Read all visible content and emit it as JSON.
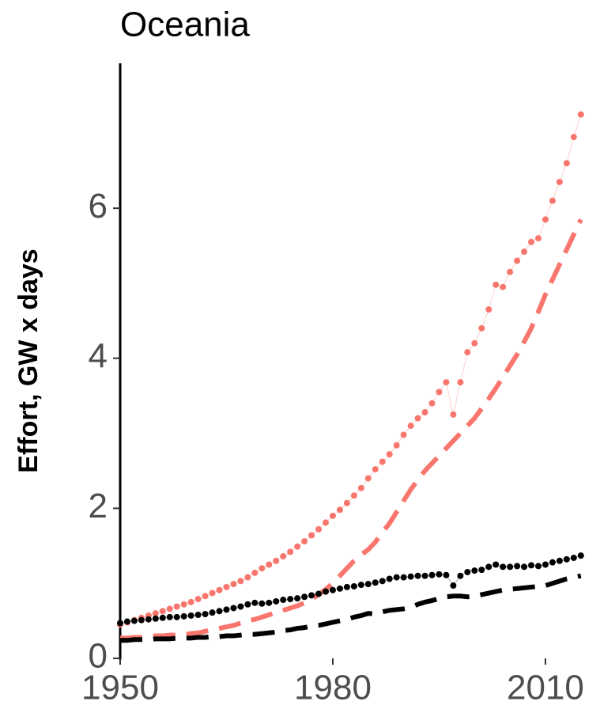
{
  "chart_data": {
    "type": "line",
    "title": "Oceania",
    "y_label": "Effort, GW x days",
    "x": [
      1950,
      1951,
      1952,
      1953,
      1954,
      1955,
      1956,
      1957,
      1958,
      1959,
      1960,
      1961,
      1962,
      1963,
      1964,
      1965,
      1966,
      1967,
      1968,
      1969,
      1970,
      1971,
      1972,
      1973,
      1974,
      1975,
      1976,
      1977,
      1978,
      1979,
      1980,
      1981,
      1982,
      1983,
      1984,
      1985,
      1986,
      1987,
      1988,
      1989,
      1990,
      1991,
      1992,
      1993,
      1994,
      1995,
      1996,
      1997,
      1998,
      1999,
      2000,
      2001,
      2002,
      2003,
      2004,
      2005,
      2006,
      2007,
      2008,
      2009,
      2010,
      2011,
      2012,
      2013,
      2014,
      2015
    ],
    "series": [
      {
        "color": "#f8766d",
        "style": "points",
        "values": [
          0.45,
          0.48,
          0.51,
          0.54,
          0.57,
          0.6,
          0.63,
          0.66,
          0.69,
          0.72,
          0.75,
          0.79,
          0.83,
          0.87,
          0.91,
          0.95,
          0.99,
          1.03,
          1.08,
          1.14,
          1.2,
          1.25,
          1.3,
          1.36,
          1.42,
          1.49,
          1.56,
          1.64,
          1.72,
          1.81,
          1.9,
          1.98,
          2.07,
          2.17,
          2.27,
          2.4,
          2.52,
          2.62,
          2.72,
          2.84,
          2.98,
          3.1,
          3.2,
          3.28,
          3.4,
          3.55,
          3.68,
          3.25,
          3.68,
          4.08,
          4.2,
          4.4,
          4.65,
          4.98,
          4.95,
          5.15,
          5.3,
          5.42,
          5.55,
          5.6,
          5.85,
          6.1,
          6.35,
          6.6,
          6.95,
          7.25
        ]
      },
      {
        "color": "#f8766d",
        "style": "dashed",
        "values": [
          0.27,
          0.27,
          0.28,
          0.28,
          0.29,
          0.3,
          0.3,
          0.31,
          0.31,
          0.32,
          0.33,
          0.34,
          0.36,
          0.38,
          0.4,
          0.42,
          0.44,
          0.47,
          0.5,
          0.52,
          0.55,
          0.58,
          0.61,
          0.64,
          0.67,
          0.7,
          0.74,
          0.79,
          0.85,
          0.92,
          1.0,
          1.1,
          1.2,
          1.3,
          1.38,
          1.45,
          1.55,
          1.68,
          1.8,
          1.95,
          2.1,
          2.25,
          2.38,
          2.5,
          2.6,
          2.7,
          2.8,
          2.9,
          3.0,
          3.1,
          3.2,
          3.33,
          3.46,
          3.6,
          3.75,
          3.9,
          4.05,
          4.22,
          4.4,
          4.62,
          4.85,
          5.05,
          5.25,
          5.45,
          5.65,
          5.85
        ]
      },
      {
        "color": "#000000",
        "style": "points",
        "values": [
          0.47,
          0.49,
          0.5,
          0.51,
          0.52,
          0.53,
          0.54,
          0.55,
          0.55,
          0.56,
          0.57,
          0.58,
          0.59,
          0.61,
          0.63,
          0.65,
          0.67,
          0.69,
          0.72,
          0.74,
          0.73,
          0.74,
          0.76,
          0.78,
          0.79,
          0.8,
          0.82,
          0.84,
          0.86,
          0.89,
          0.91,
          0.93,
          0.95,
          0.96,
          0.98,
          0.99,
          1.01,
          1.03,
          1.06,
          1.08,
          1.08,
          1.09,
          1.1,
          1.1,
          1.11,
          1.12,
          1.11,
          0.97,
          1.1,
          1.15,
          1.17,
          1.18,
          1.22,
          1.25,
          1.22,
          1.22,
          1.23,
          1.22,
          1.24,
          1.23,
          1.25,
          1.28,
          1.3,
          1.32,
          1.34,
          1.37
        ]
      },
      {
        "color": "#000000",
        "style": "dashed",
        "values": [
          0.24,
          0.24,
          0.25,
          0.25,
          0.25,
          0.26,
          0.26,
          0.26,
          0.27,
          0.27,
          0.27,
          0.28,
          0.28,
          0.29,
          0.29,
          0.3,
          0.3,
          0.31,
          0.32,
          0.32,
          0.33,
          0.34,
          0.35,
          0.37,
          0.38,
          0.4,
          0.41,
          0.43,
          0.44,
          0.46,
          0.48,
          0.5,
          0.52,
          0.55,
          0.57,
          0.6,
          0.59,
          0.62,
          0.64,
          0.65,
          0.66,
          0.68,
          0.72,
          0.75,
          0.77,
          0.8,
          0.82,
          0.83,
          0.83,
          0.82,
          0.83,
          0.85,
          0.87,
          0.89,
          0.91,
          0.92,
          0.93,
          0.94,
          0.95,
          0.96,
          0.97,
          1.0,
          1.03,
          1.06,
          1.08,
          1.1
        ]
      }
    ],
    "xlim": [
      1950,
      2015
    ],
    "xticks": [
      1950,
      1980,
      2010
    ],
    "ylim": [
      0,
      7.9
    ],
    "yticks": [
      0,
      2,
      4,
      6
    ],
    "grid": false
  }
}
